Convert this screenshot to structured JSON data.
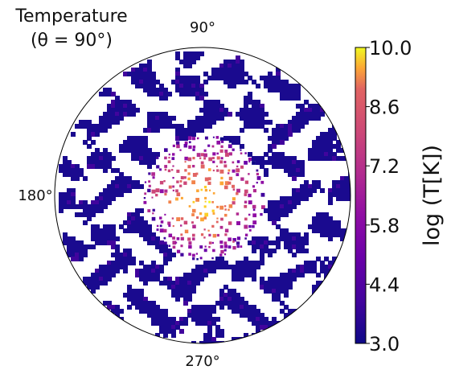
{
  "chart_data": {
    "type": "heatmap",
    "projection": "polar",
    "title": "Temperature",
    "subtitle": "(θ = 90°)",
    "angle_labels": [
      "90°",
      "180°",
      "270°"
    ],
    "colorbar": {
      "label": "log (T[K])",
      "colormap": "plasma",
      "range": [
        3.0,
        10.0
      ],
      "ticks": [
        "10.0",
        "8.6",
        "7.2",
        "5.8",
        "4.4",
        "3.0"
      ]
    },
    "description_values": {
      "outer_region_logT": 3.0,
      "inner_region_logT_max": 8.6
    },
    "grid": false
  },
  "colors": {
    "low": "#0d0887",
    "mid": "#cc4778",
    "high": "#f0f921"
  }
}
